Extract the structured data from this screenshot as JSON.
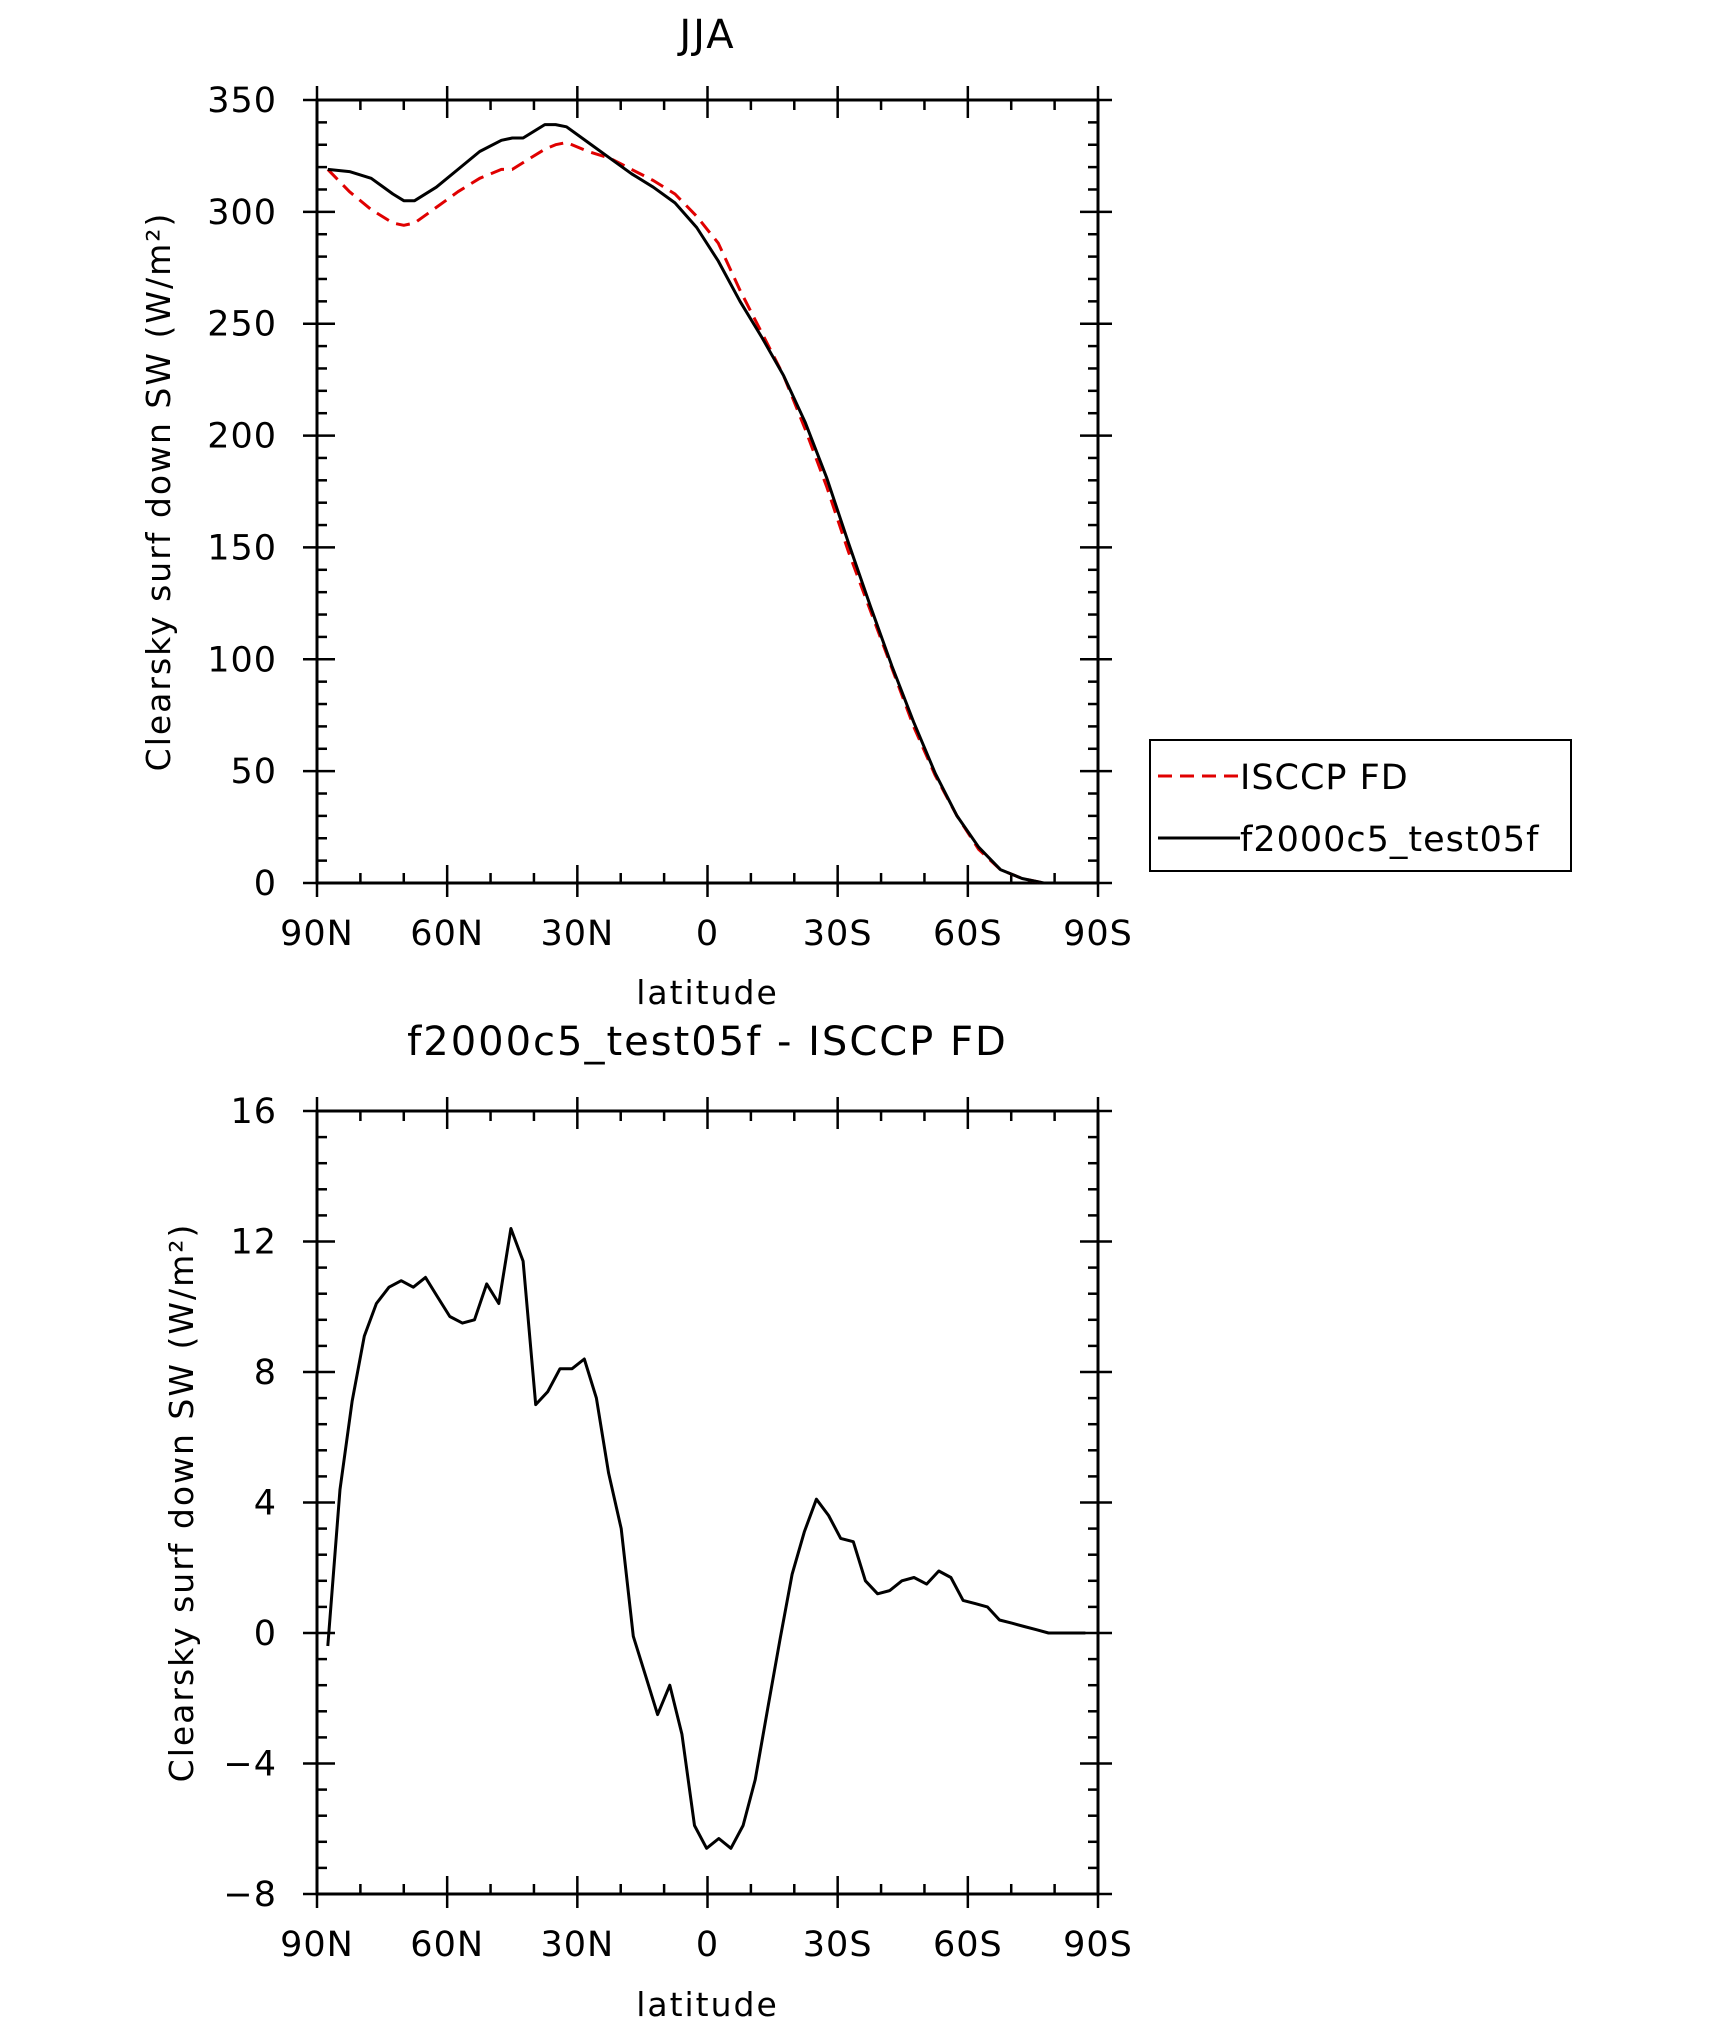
{
  "chart_data": [
    {
      "type": "line",
      "title": "JJA",
      "xlabel": "latitude",
      "ylabel": "Clearsky surf down SW (W/m²)",
      "xlim": [
        90,
        -90
      ],
      "ylim": [
        0,
        350
      ],
      "x_tick_values": [
        90,
        60,
        30,
        0,
        -30,
        -60,
        -90
      ],
      "x_tick_labels": [
        "90N",
        "60N",
        "30N",
        "0",
        "30S",
        "60S",
        "90S"
      ],
      "y_tick_values": [
        0,
        50,
        100,
        150,
        200,
        250,
        300,
        350
      ],
      "y_tick_labels": [
        "0",
        "50",
        "100",
        "150",
        "200",
        "250",
        "300",
        "350"
      ],
      "grid": false,
      "legend_position": "right",
      "series": [
        {
          "name": "ISCCP FD",
          "color": "#e00000",
          "dash": "dashed",
          "x": [
            87.5,
            82.5,
            77.5,
            72.5,
            70,
            67.5,
            62.5,
            57.5,
            52.5,
            47.5,
            45,
            42.5,
            37.5,
            35,
            32.5,
            27.5,
            22.5,
            17.5,
            12.5,
            7.5,
            2.5,
            -2.5,
            -7.5,
            -12.5,
            -17.5,
            -22.5,
            -27.5,
            -32.5,
            -37.5,
            -42.5,
            -47.5,
            -52.5,
            -57.5,
            -62.5,
            -67.5,
            -72.5,
            -77.5,
            -82.5,
            -87.5
          ],
          "y": [
            319,
            309,
            301,
            295,
            294,
            295,
            302,
            309,
            315,
            319,
            319,
            322,
            328,
            330,
            331,
            327,
            324,
            319,
            314,
            308,
            298,
            286,
            265,
            246,
            227,
            203,
            177,
            148,
            122,
            96,
            70,
            48,
            30,
            15,
            6,
            2,
            0,
            0,
            0
          ]
        },
        {
          "name": "f2000c5_test05f",
          "color": "#000000",
          "dash": "solid",
          "x": [
            87.5,
            82.5,
            77.5,
            72.5,
            70,
            67.5,
            62.5,
            57.5,
            52.5,
            47.5,
            45,
            42.5,
            37.5,
            35,
            32.5,
            27.5,
            22.5,
            17.5,
            12.5,
            7.5,
            2.5,
            -2.5,
            -7.5,
            -12.5,
            -17.5,
            -22.5,
            -27.5,
            -32.5,
            -37.5,
            -42.5,
            -47.5,
            -52.5,
            -57.5,
            -62.5,
            -67.5,
            -72.5,
            -77.5,
            -82.5,
            -87.5
          ],
          "y": [
            319,
            318,
            315,
            308,
            305,
            305,
            311,
            319,
            327,
            332,
            333,
            333,
            339,
            339,
            338,
            331,
            324,
            317,
            311,
            304,
            293,
            278,
            260,
            244,
            227,
            206,
            181,
            152,
            124,
            97,
            72,
            49,
            30,
            16,
            6,
            2,
            0,
            0,
            0
          ]
        }
      ]
    },
    {
      "type": "line",
      "title": "f2000c5_test05f - ISCCP FD",
      "xlabel": "latitude",
      "ylabel": "Clearsky surf down SW (W/m²)",
      "xlim": [
        90,
        -90
      ],
      "ylim": [
        -8,
        16
      ],
      "x_tick_values": [
        90,
        60,
        30,
        0,
        -30,
        -60,
        -90
      ],
      "x_tick_labels": [
        "90N",
        "60N",
        "30N",
        "0",
        "30S",
        "60S",
        "90S"
      ],
      "y_tick_values": [
        -8,
        -4,
        0,
        4,
        8,
        12,
        16
      ],
      "y_tick_labels": [
        "−8",
        "−4",
        "0",
        "4",
        "8",
        "12",
        "16"
      ],
      "grid": false,
      "series": [
        {
          "color": "#000000",
          "dash": "solid",
          "x": [
            87.5,
            84.7,
            81.9,
            79.1,
            76.3,
            73.4,
            70.6,
            67.8,
            65.0,
            62.2,
            59.4,
            56.5,
            53.7,
            50.9,
            48.1,
            45.3,
            42.5,
            39.6,
            36.8,
            34.0,
            31.2,
            28.4,
            25.6,
            22.8,
            19.9,
            17.1,
            14.3,
            11.5,
            8.7,
            5.9,
            3.0,
            0.2,
            -2.6,
            -5.4,
            -8.2,
            -11.0,
            -13.9,
            -16.7,
            -19.5,
            -22.3,
            -25.1,
            -27.9,
            -30.7,
            -33.6,
            -36.4,
            -39.2,
            -42.0,
            -44.8,
            -47.6,
            -50.5,
            -53.3,
            -56.1,
            -58.9,
            -61.7,
            -64.5,
            -67.3,
            -70.2,
            -73.0,
            -75.8,
            -78.6,
            -81.4,
            -84.2,
            -87.1
          ],
          "y": [
            -0.4,
            4.4,
            7.1,
            9.1,
            10.1,
            10.6,
            10.8,
            10.6,
            10.9,
            10.3,
            9.7,
            9.5,
            9.6,
            10.7,
            10.1,
            12.4,
            11.4,
            7.0,
            7.4,
            8.1,
            8.1,
            8.4,
            7.2,
            4.9,
            3.2,
            -0.1,
            -1.3,
            -2.5,
            -1.6,
            -3.1,
            -5.9,
            -6.6,
            -6.3,
            -6.6,
            -5.9,
            -4.5,
            -2.3,
            -0.2,
            1.8,
            3.1,
            4.1,
            3.6,
            2.9,
            2.8,
            1.6,
            1.2,
            1.3,
            1.6,
            1.7,
            1.5,
            1.9,
            1.7,
            1.0,
            0.9,
            0.8,
            0.4,
            0.3,
            0.2,
            0.1,
            0.0,
            0.0,
            0.0,
            0.0
          ]
        }
      ]
    }
  ]
}
